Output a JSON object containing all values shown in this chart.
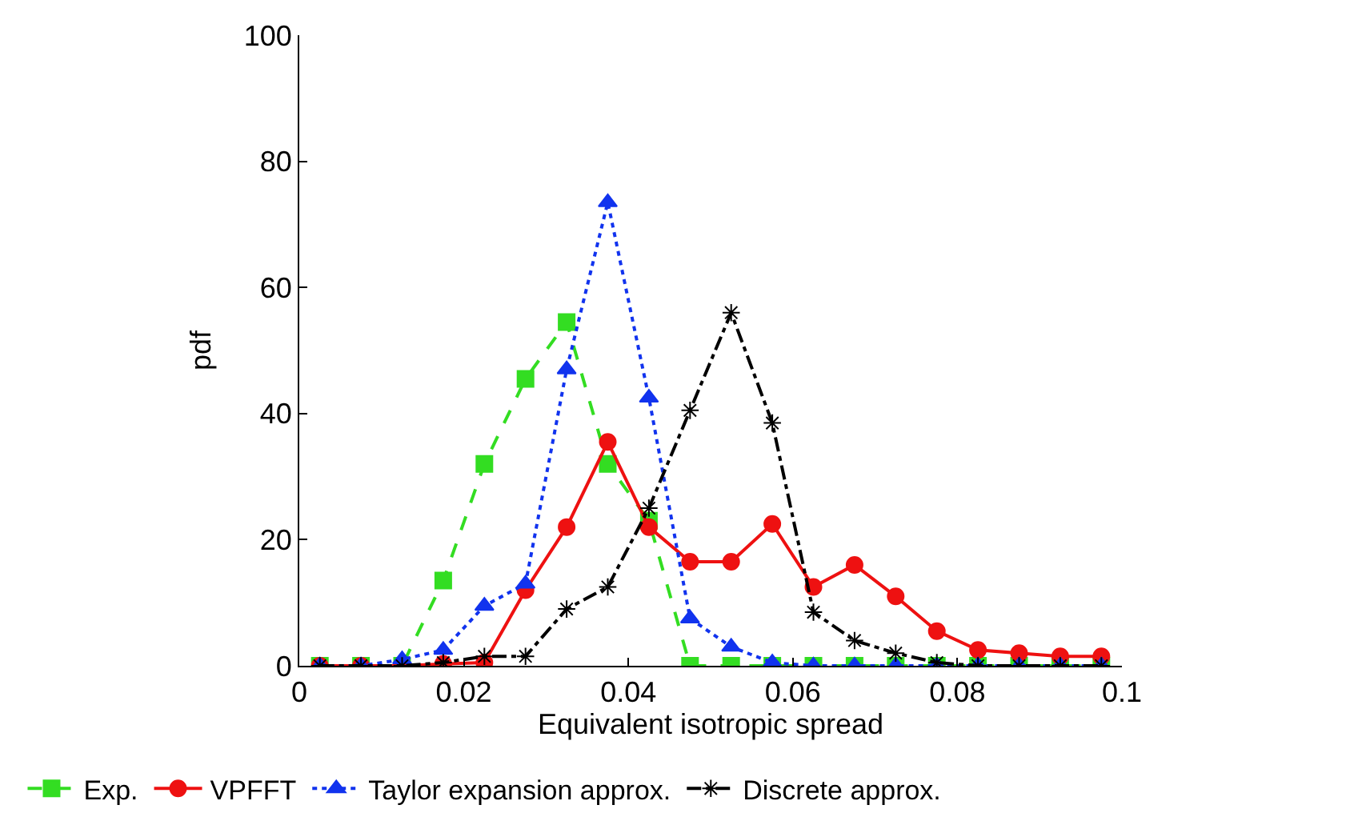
{
  "chart_data": {
    "type": "line",
    "xlabel": "Equivalent isotropic spread",
    "ylabel": "pdf",
    "x": [
      0.0025,
      0.0075,
      0.0125,
      0.0175,
      0.0225,
      0.0275,
      0.0325,
      0.0375,
      0.0425,
      0.0475,
      0.0525,
      0.0575,
      0.0625,
      0.0675,
      0.0725,
      0.0775,
      0.0825,
      0.0875,
      0.0925,
      0.0975
    ],
    "series": [
      {
        "name": "Exp.",
        "color": "#33dd22",
        "marker": "square",
        "line_style": "dashed",
        "values": [
          0,
          0,
          0,
          13.5,
          32,
          45.5,
          54.5,
          32,
          23,
          0,
          0,
          0,
          0,
          0,
          0,
          0,
          0,
          0,
          0,
          0
        ]
      },
      {
        "name": "VPFFT",
        "color": "#ee1111",
        "marker": "circle",
        "line_style": "solid",
        "values": [
          0,
          0,
          0,
          0.3,
          0.5,
          12,
          22,
          35.5,
          22,
          16.5,
          16.5,
          22.5,
          12.5,
          16,
          11,
          5.5,
          2.5,
          2,
          1.5,
          1.5
        ]
      },
      {
        "name": "Taylor expansion approx.",
        "color": "#1133ee",
        "marker": "triangle",
        "line_style": "dotted",
        "values": [
          0,
          0,
          1,
          2.5,
          9.5,
          13,
          47,
          73.5,
          42.5,
          7.5,
          3,
          0.5,
          0,
          0,
          0,
          0,
          0,
          0,
          0,
          0
        ]
      },
      {
        "name": "Discrete approx.",
        "color": "#000000",
        "marker": "cross",
        "line_style": "dashdot",
        "values": [
          0,
          0,
          0,
          0.5,
          1.5,
          1.5,
          9,
          12.5,
          25,
          40.5,
          56,
          38.5,
          8.5,
          4,
          2,
          0.5,
          0,
          0,
          0,
          0
        ]
      }
    ],
    "xlim": [
      0,
      0.1
    ],
    "xticks": [
      0,
      0.02,
      0.04,
      0.06,
      0.08,
      0.1
    ],
    "ylim": [
      0,
      100
    ],
    "yticks": [
      0,
      20,
      40,
      60,
      80,
      100
    ],
    "legend": "bottom"
  }
}
